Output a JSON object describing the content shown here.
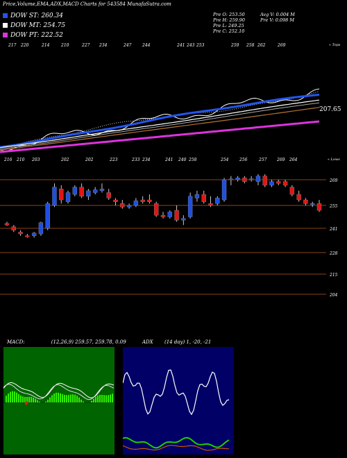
{
  "title": "Price,Volume,EMA,ADX,MACD Charts for 543584 MunafaSutra.com",
  "legend": [
    {
      "label": "DOW ST: ",
      "value": "260.34",
      "color": "#2255ee"
    },
    {
      "label": "DOW MT: ",
      "value": "254.75",
      "color": "#ffffff"
    },
    {
      "label": "DOW PT: ",
      "value": "222.52",
      "color": "#dd33dd"
    }
  ],
  "stats": {
    "open": "Pre  O: 253.50",
    "high": "Pre  H: 259.90",
    "low": "Pre  L: 249.25",
    "close": "Pre  C: 252.10",
    "avg_volume": "Avg V: 0.004  M",
    "prev_volume": "Pre  V: 0.098 M"
  },
  "chart_data": {
    "type": "candlestick",
    "upper_panel": {
      "top_labels": [
        "217",
        "220",
        "214",
        "210",
        "227",
        "234",
        "247",
        "244",
        "241",
        "243",
        "253",
        "259",
        "258",
        "262",
        "269"
      ],
      "bottom_labels": [
        "216",
        "210",
        "203",
        "202",
        "202",
        "223",
        "233",
        "234",
        "241",
        "240",
        "258",
        "254",
        "256",
        "257",
        "269",
        "264"
      ],
      "top_tag": "« Tops",
      "bottom_tag": "« Lows",
      "ema_last_label": "207.65"
    },
    "price_axis": [
      "269",
      "255",
      "241",
      "228",
      "215",
      "204"
    ],
    "candles": [
      {
        "o": 244,
        "h": 245,
        "l": 242.5,
        "c": 243
      },
      {
        "o": 242,
        "h": 243,
        "l": 239,
        "c": 240
      },
      {
        "o": 239,
        "h": 240,
        "l": 237,
        "c": 238
      },
      {
        "o": 237,
        "h": 238,
        "l": 236,
        "c": 236.5
      },
      {
        "o": 237,
        "h": 239,
        "l": 236,
        "c": 238.5
      },
      {
        "o": 238,
        "h": 245,
        "l": 237,
        "c": 244.5
      },
      {
        "o": 241,
        "h": 257,
        "l": 240,
        "c": 256
      },
      {
        "o": 255,
        "h": 267,
        "l": 254,
        "c": 265
      },
      {
        "o": 264,
        "h": 266,
        "l": 256,
        "c": 258
      },
      {
        "o": 257,
        "h": 263,
        "l": 256,
        "c": 262
      },
      {
        "o": 261,
        "h": 266,
        "l": 260,
        "c": 265
      },
      {
        "o": 265,
        "h": 267,
        "l": 259,
        "c": 260
      },
      {
        "o": 260,
        "h": 264,
        "l": 258,
        "c": 263
      },
      {
        "o": 262,
        "h": 265,
        "l": 261,
        "c": 263.5
      },
      {
        "o": 263,
        "h": 267,
        "l": 262,
        "c": 264
      },
      {
        "o": 262,
        "h": 264,
        "l": 258,
        "c": 259
      },
      {
        "o": 258,
        "h": 259,
        "l": 255,
        "c": 257
      },
      {
        "o": 256,
        "h": 258,
        "l": 253,
        "c": 254
      },
      {
        "o": 254,
        "h": 256,
        "l": 253,
        "c": 255
      },
      {
        "o": 255,
        "h": 259,
        "l": 254,
        "c": 257.5
      },
      {
        "o": 258,
        "h": 260,
        "l": 256,
        "c": 257
      },
      {
        "o": 258,
        "h": 261,
        "l": 256,
        "c": 257
      },
      {
        "o": 256,
        "h": 257,
        "l": 248,
        "c": 249
      },
      {
        "o": 249,
        "h": 251,
        "l": 247,
        "c": 248
      },
      {
        "o": 248,
        "h": 252,
        "l": 247,
        "c": 251
      },
      {
        "o": 252,
        "h": 255,
        "l": 245,
        "c": 246
      },
      {
        "o": 246,
        "h": 249,
        "l": 243,
        "c": 247
      },
      {
        "o": 248,
        "h": 262,
        "l": 247,
        "c": 260
      },
      {
        "o": 259,
        "h": 263,
        "l": 257,
        "c": 261
      },
      {
        "o": 261,
        "h": 263,
        "l": 256,
        "c": 257
      },
      {
        "o": 256,
        "h": 260,
        "l": 254,
        "c": 255
      },
      {
        "o": 256,
        "h": 260,
        "l": 255,
        "c": 259
      },
      {
        "o": 258,
        "h": 270,
        "l": 257,
        "c": 269
      },
      {
        "o": 269,
        "h": 271,
        "l": 266,
        "c": 269.5
      },
      {
        "o": 269,
        "h": 271,
        "l": 268,
        "c": 270
      },
      {
        "o": 270,
        "h": 271,
        "l": 267,
        "c": 268
      },
      {
        "o": 269,
        "h": 271,
        "l": 268,
        "c": 269.5
      },
      {
        "o": 268,
        "h": 272,
        "l": 266,
        "c": 271
      },
      {
        "o": 271,
        "h": 272,
        "l": 265,
        "c": 266
      },
      {
        "o": 266,
        "h": 269,
        "l": 265,
        "c": 268
      },
      {
        "o": 268,
        "h": 269,
        "l": 266,
        "c": 267
      },
      {
        "o": 268,
        "h": 269,
        "l": 265,
        "c": 266
      },
      {
        "o": 265,
        "h": 266,
        "l": 260,
        "c": 261
      },
      {
        "o": 261,
        "h": 263,
        "l": 257,
        "c": 258
      },
      {
        "o": 258,
        "h": 259,
        "l": 255,
        "c": 256
      },
      {
        "o": 255.5,
        "h": 257,
        "l": 254,
        "c": 256
      },
      {
        "o": 256,
        "h": 258,
        "l": 251,
        "c": 252
      }
    ],
    "macd_label": "MACD: ",
    "macd_text": "(12,26,9) 259.57, 259.78, 0.09",
    "adx_label": "ADX",
    "adx_text": "(14 day) 1, -20, -21"
  },
  "colors": {
    "up": "#1f4fe0",
    "down": "#e01616",
    "grid": "#8b4513",
    "macd_bg": "#006400",
    "histogram": "#33ee00",
    "adx_bg": "#000066"
  }
}
